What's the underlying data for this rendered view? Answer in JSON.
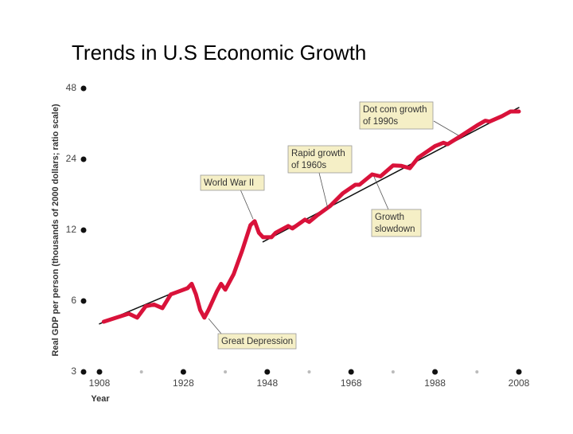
{
  "chart_data": {
    "type": "line",
    "title": "Trends in U.S Economic Growth",
    "x_label": "Year",
    "y_label": "Real GDP per person (thousands of 2000 dollars; ratio scale)",
    "log_scale": true,
    "xlim": [
      1908,
      2008
    ],
    "xticks": [
      1908,
      1928,
      1948,
      1968,
      1988,
      2008
    ],
    "xminorticks": [
      1918,
      1938,
      1958,
      1978,
      1998
    ],
    "ylim": [
      3,
      48
    ],
    "yticks": [
      3,
      6,
      12,
      24,
      48
    ],
    "series": [
      {
        "color": "#d9123a",
        "x": [
          1909,
          1912,
          1915,
          1917,
          1919,
          1921,
          1923,
          1925,
          1927,
          1929,
          1930,
          1931,
          1932,
          1933,
          1934,
          1936,
          1937,
          1938,
          1940,
          1942,
          1944,
          1945,
          1946,
          1947,
          1949,
          1950,
          1953,
          1954,
          1957,
          1958,
          1960,
          1963,
          1966,
          1969,
          1970,
          1973,
          1975,
          1978,
          1980,
          1982,
          1984,
          1988,
          1990,
          1991,
          1994,
          1998,
          2000,
          2001,
          2004,
          2006,
          2008
        ],
        "values": [
          4.9,
          5.1,
          5.3,
          5.1,
          5.7,
          5.8,
          5.6,
          6.4,
          6.6,
          6.8,
          7.1,
          6.4,
          5.5,
          5.1,
          5.5,
          6.6,
          7.1,
          6.7,
          7.8,
          9.8,
          12.6,
          13.1,
          11.7,
          11.2,
          11.2,
          11.7,
          12.5,
          12.2,
          13.3,
          13.0,
          13.9,
          15.2,
          17.2,
          18.7,
          18.7,
          20.7,
          20.3,
          22.6,
          22.5,
          22.0,
          24.4,
          27.3,
          28.2,
          27.8,
          30.0,
          33.4,
          35.0,
          34.7,
          36.6,
          38.3,
          38.3
        ]
      },
      {
        "color": "#111111",
        "x": [
          1908,
          1929
        ],
        "values": [
          4.8,
          6.9
        ]
      },
      {
        "color": "#111111",
        "x": [
          1947,
          2008
        ],
        "values": [
          10.7,
          39.8
        ]
      }
    ],
    "annotations": [
      {
        "lines": [
          "Dot com growth",
          "of 1990s"
        ]
      },
      {
        "lines": [
          "Rapid growth",
          "of 1960s"
        ]
      },
      {
        "lines": [
          "World War II"
        ]
      },
      {
        "lines": [
          "Growth",
          "slowdown"
        ]
      },
      {
        "lines": [
          "Great Depression"
        ]
      }
    ]
  }
}
